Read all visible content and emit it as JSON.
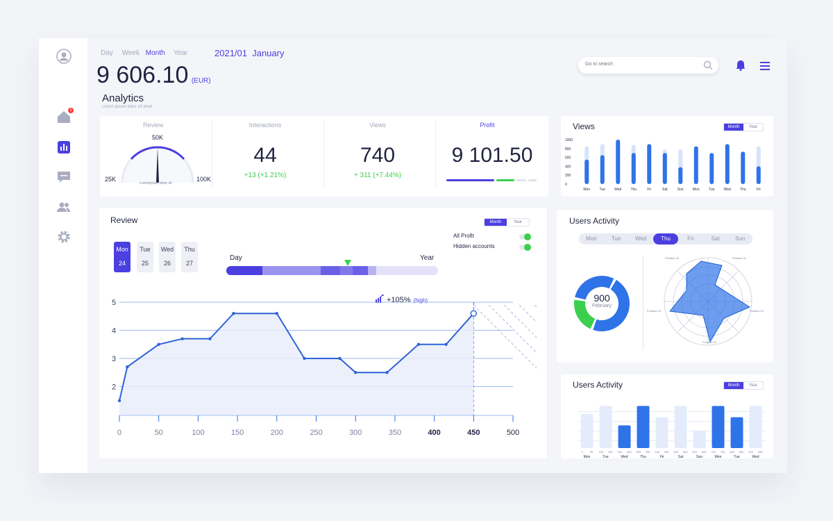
{
  "header": {
    "period_tabs": [
      "Day",
      "Week",
      "Month",
      "Year"
    ],
    "active_period": "Month",
    "date_label": "2021/01  January",
    "total_value": "9 606.10",
    "currency": "(EUR)",
    "section_title": "Analytics",
    "section_subtitle": "Lorem ipsum dolor sit amet",
    "search_placeholder": "Go to search",
    "notification_count": "1"
  },
  "sidebar": {
    "items": [
      "user-icon",
      "home-icon",
      "analytics-icon",
      "message-icon",
      "users-icon",
      "gear-icon"
    ]
  },
  "kpis": {
    "review": {
      "label": "Review",
      "max_label": "50K",
      "left_label": "25K",
      "right_label": "100K",
      "caption": "Loremipsum dolor sit",
      "gauge_fraction": 0.5
    },
    "interactions": {
      "label": "Interactions",
      "value": "44",
      "delta": "+13 (+1.21%)"
    },
    "views": {
      "label": "Views",
      "value": "740",
      "delta": "+ 311 (+7.44%)"
    },
    "profit": {
      "label": "Profit",
      "value": "9 101.50"
    }
  },
  "views_panel": {
    "title": "Views",
    "seg": [
      "Month",
      "Year"
    ],
    "active": "Month",
    "chart_data": {
      "type": "bar",
      "categories": [
        "Mon",
        "Tue",
        "Wed",
        "Thu",
        "Fri",
        "Sat",
        "Sun",
        "Mon",
        "Tue",
        "Wed",
        "Thu",
        "Fri"
      ],
      "y_ticks": [
        "1000",
        "800",
        "600",
        "400",
        "200",
        "0"
      ],
      "ylim": [
        0,
        1000
      ],
      "series": [
        {
          "name": "background",
          "values": [
            850,
            900,
            0,
            880,
            0,
            780,
            780,
            0,
            0,
            0,
            0,
            850
          ]
        },
        {
          "name": "value",
          "values": [
            550,
            650,
            1000,
            700,
            900,
            700,
            380,
            850,
            700,
            900,
            730,
            400
          ]
        }
      ]
    }
  },
  "review_panel": {
    "title": "Review",
    "seg": [
      "Month",
      "Year"
    ],
    "active": "Month",
    "days": [
      {
        "d": "Mon",
        "n": "24"
      },
      {
        "d": "Tue",
        "n": "25"
      },
      {
        "d": "Wed",
        "n": "26"
      },
      {
        "d": "Thu",
        "n": "27"
      }
    ],
    "active_day": "Mon",
    "range_left": "Day",
    "range_right": "Year",
    "toggles": [
      "All Profit",
      "Hidden accounts"
    ],
    "tooltip_value": "+105%",
    "tooltip_note": "(high)",
    "chart_data": {
      "type": "line",
      "x": [
        0,
        10,
        50,
        80,
        115,
        145,
        200,
        235,
        280,
        300,
        340,
        380,
        415,
        450
      ],
      "y": [
        1.5,
        2.7,
        3.5,
        3.7,
        3.7,
        4.6,
        4.6,
        3.0,
        3.0,
        2.5,
        2.5,
        3.5,
        3.5,
        4.6
      ],
      "x_ticks": [
        "0",
        "50",
        "100",
        "150",
        "200",
        "250",
        "300",
        "350",
        "400",
        "450",
        "500"
      ],
      "y_ticks": [
        "5",
        "4",
        "3",
        "2"
      ],
      "xlim": [
        0,
        500
      ],
      "ylim": [
        1,
        5
      ]
    }
  },
  "users_activity": {
    "title": "Users Activity",
    "days": [
      "Mon",
      "Tue",
      "Wed",
      "Thu",
      "Fri",
      "Sat",
      "Sun"
    ],
    "active_day": "Thu",
    "donut_value": "900",
    "donut_label": "February",
    "donut_chart": {
      "type": "pie",
      "values": [
        48,
        22,
        30
      ],
      "colors": [
        "#2f73e8",
        "#3ccf4e",
        "#2f73e8"
      ]
    },
    "radar_labels": [
      "Position 01",
      "Position 02",
      "Position 03",
      "Position 04",
      "Position 05"
    ]
  },
  "users_activity_bars": {
    "title": "Users Activity",
    "seg": [
      "Month",
      "Year"
    ],
    "active": "Month",
    "chart_data": {
      "type": "bar",
      "categories": [
        "Mon",
        "Tue",
        "Wed",
        "Thu",
        "Fri",
        "Sat",
        "Sun",
        "Mon",
        "Tue",
        "Wed"
      ],
      "tick_values": [
        "0",
        "50",
        "100",
        "150",
        "200",
        "250",
        "300",
        "350",
        "400",
        "450",
        "500",
        "550",
        "600",
        "650",
        "700",
        "750",
        "800",
        "850",
        "900",
        "950"
      ],
      "ylim": [
        0,
        600
      ],
      "series": [
        {
          "name": "value",
          "values": [
            420,
            520,
            280,
            520,
            380,
            520,
            210,
            520,
            380,
            520
          ],
          "highlight": [
            false,
            false,
            true,
            true,
            false,
            false,
            false,
            true,
            true,
            false
          ]
        }
      ]
    }
  },
  "colors": {
    "accent": "#4b3fe0",
    "blue": "#2f73e8",
    "green": "#3ccf4e",
    "bg": "#f4f5f9"
  }
}
